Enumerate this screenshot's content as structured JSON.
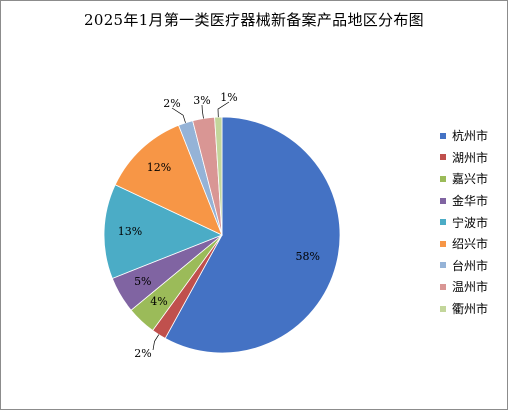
{
  "chart_data": {
    "type": "pie",
    "title": "2025年1月第一类医疗器械新备案产品地区分布图",
    "categories": [
      "杭州市",
      "湖州市",
      "嘉兴市",
      "金华市",
      "宁波市",
      "绍兴市",
      "台州市",
      "温州市",
      "衢州市"
    ],
    "values": [
      58,
      2,
      4,
      5,
      13,
      12,
      2,
      3,
      1
    ],
    "labels": [
      "58%",
      "2%",
      "4%",
      "5%",
      "13%",
      "12%",
      "2%",
      "3%",
      "1%"
    ],
    "colors": [
      "#4472c4",
      "#c0504d",
      "#9bbb59",
      "#8064a2",
      "#4bacc6",
      "#f79646",
      "#95b3d7",
      "#d99694",
      "#c3d69b"
    ],
    "legend": "right"
  }
}
